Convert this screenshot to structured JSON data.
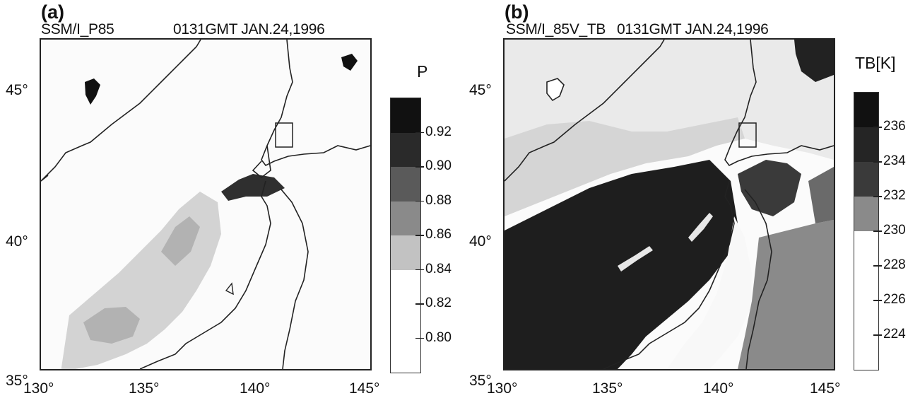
{
  "panels": [
    {
      "label": "(a)",
      "title_left": "SSM/I_P85",
      "title_right": "0131GMT JAN.24,1996",
      "lat_labels": [
        "45°",
        "40°",
        "35°"
      ],
      "lon_labels": [
        "130°",
        "135°",
        "140°",
        "145°"
      ],
      "colorbar": {
        "title": "P",
        "ticks": [
          "0.92",
          "0.90",
          "0.88",
          "0.86",
          "0.84",
          "0.82",
          "0.80"
        ],
        "colors": [
          "#111111",
          "#2a2a2a",
          "#5a5a5a",
          "#8a8a8a",
          "#c2c2c2",
          "#ffffff",
          "#ffffff",
          "#ffffff"
        ]
      }
    },
    {
      "label": "(b)",
      "title_left": "SSM/I_85V_TB",
      "title_right": "0131GMT JAN.24,1996",
      "lat_labels": [
        "45°",
        "40°",
        "35°"
      ],
      "lon_labels": [
        "130°",
        "135°",
        "140°",
        "145°"
      ],
      "colorbar": {
        "title": "TB[K]",
        "ticks": [
          "236",
          "234",
          "232",
          "230",
          "228",
          "226",
          "224"
        ],
        "colors": [
          "#111111",
          "#252525",
          "#3a3a3a",
          "#8a8a8a",
          "#ffffff",
          "#ffffff",
          "#ffffff",
          "#ffffff"
        ]
      }
    }
  ]
}
